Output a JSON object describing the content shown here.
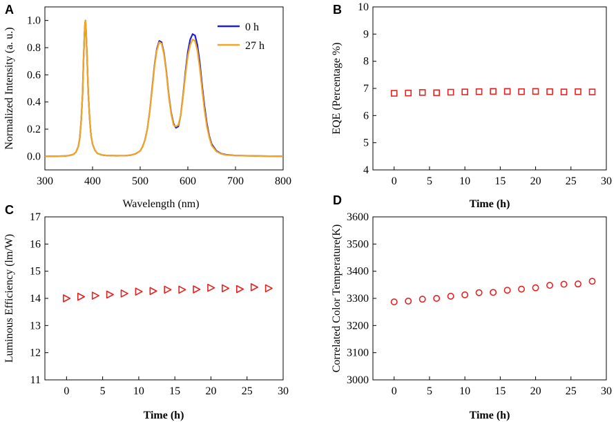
{
  "chart_data": [
    {
      "panel": "A",
      "type": "line",
      "title": "",
      "xlabel": "Wavelength (nm)",
      "ylabel": "Normalized Intensity (a. u.)",
      "xlim": [
        300,
        800
      ],
      "ylim": [
        -0.1,
        1.1
      ],
      "xticks": [
        300,
        400,
        500,
        600,
        700,
        800
      ],
      "yticks": [
        0.0,
        0.2,
        0.4,
        0.6,
        0.8,
        1.0
      ],
      "ytick_labels": [
        "0.0",
        "0.2",
        "0.4",
        "0.6",
        "0.8",
        "1.0"
      ],
      "legend_position": "top-right",
      "series": [
        {
          "name": "0 h",
          "color": "#1f1fd6",
          "x": [
            300,
            320,
            340,
            350,
            360,
            365,
            370,
            373,
            376,
            379,
            381,
            383,
            384,
            385,
            386,
            387,
            389,
            391,
            394,
            397,
            400,
            405,
            410,
            420,
            430,
            450,
            470,
            480,
            490,
            500,
            505,
            510,
            515,
            520,
            525,
            530,
            535,
            540,
            545,
            550,
            555,
            560,
            565,
            570,
            575,
            580,
            585,
            590,
            595,
            600,
            605,
            610,
            615,
            620,
            625,
            630,
            635,
            640,
            645,
            650,
            660,
            670,
            680,
            700,
            750,
            800
          ],
          "y": [
            0.0,
            0.0,
            0.002,
            0.005,
            0.015,
            0.03,
            0.07,
            0.13,
            0.25,
            0.45,
            0.7,
            0.9,
            0.97,
            1.0,
            0.96,
            0.88,
            0.68,
            0.47,
            0.27,
            0.15,
            0.09,
            0.045,
            0.022,
            0.01,
            0.006,
            0.004,
            0.005,
            0.009,
            0.018,
            0.04,
            0.07,
            0.12,
            0.2,
            0.33,
            0.5,
            0.67,
            0.79,
            0.85,
            0.84,
            0.76,
            0.62,
            0.45,
            0.32,
            0.24,
            0.21,
            0.22,
            0.3,
            0.45,
            0.62,
            0.77,
            0.86,
            0.9,
            0.89,
            0.82,
            0.69,
            0.52,
            0.37,
            0.24,
            0.15,
            0.09,
            0.04,
            0.02,
            0.012,
            0.006,
            0.002,
            0.0
          ]
        },
        {
          "name": "27 h",
          "color": "#f5a61e",
          "x": [
            300,
            320,
            340,
            350,
            360,
            365,
            370,
            373,
            376,
            379,
            381,
            383,
            384,
            385,
            386,
            387,
            389,
            391,
            394,
            397,
            400,
            405,
            410,
            420,
            430,
            450,
            470,
            480,
            490,
            500,
            505,
            510,
            515,
            520,
            525,
            530,
            535,
            540,
            545,
            550,
            555,
            560,
            565,
            570,
            575,
            580,
            585,
            590,
            595,
            600,
            605,
            610,
            615,
            620,
            625,
            630,
            635,
            640,
            645,
            650,
            660,
            670,
            680,
            700,
            750,
            800
          ],
          "y": [
            0.0,
            0.0,
            0.002,
            0.005,
            0.015,
            0.03,
            0.07,
            0.13,
            0.25,
            0.45,
            0.7,
            0.9,
            0.97,
            1.0,
            0.96,
            0.88,
            0.68,
            0.47,
            0.27,
            0.15,
            0.09,
            0.045,
            0.022,
            0.01,
            0.006,
            0.004,
            0.005,
            0.009,
            0.018,
            0.04,
            0.07,
            0.12,
            0.2,
            0.33,
            0.49,
            0.66,
            0.78,
            0.84,
            0.83,
            0.75,
            0.61,
            0.44,
            0.31,
            0.23,
            0.22,
            0.23,
            0.3,
            0.44,
            0.6,
            0.74,
            0.82,
            0.86,
            0.85,
            0.78,
            0.65,
            0.49,
            0.34,
            0.22,
            0.14,
            0.08,
            0.035,
            0.018,
            0.01,
            0.005,
            0.002,
            0.0
          ]
        }
      ]
    },
    {
      "panel": "B",
      "type": "scatter",
      "title": "",
      "xlabel": "Time (h)",
      "ylabel": "EQE (Percentage  %)",
      "xlim": [
        -3,
        30
      ],
      "ylim": [
        4,
        10
      ],
      "xticks": [
        0,
        5,
        10,
        15,
        20,
        25,
        30
      ],
      "yticks": [
        4,
        5,
        6,
        7,
        8,
        9,
        10
      ],
      "marker": "square",
      "color": "#e8201f",
      "x": [
        0,
        2,
        4,
        6,
        8,
        10,
        12,
        14,
        16,
        18,
        20,
        22,
        24,
        26,
        28
      ],
      "y": [
        6.82,
        6.83,
        6.85,
        6.84,
        6.86,
        6.87,
        6.88,
        6.89,
        6.89,
        6.88,
        6.89,
        6.88,
        6.87,
        6.88,
        6.87
      ]
    },
    {
      "panel": "C",
      "type": "scatter",
      "title": "",
      "xlabel": "Time (h)",
      "ylabel": "Luminous Efficiency (lm/W)",
      "xlim": [
        -3,
        30
      ],
      "ylim": [
        11,
        17
      ],
      "xticks": [
        0,
        5,
        10,
        15,
        20,
        25,
        30
      ],
      "yticks": [
        11,
        12,
        13,
        14,
        15,
        16,
        17
      ],
      "marker": "triangle-right",
      "color": "#e8201f",
      "x": [
        0,
        2,
        4,
        6,
        8,
        10,
        12,
        14,
        16,
        18,
        20,
        22,
        24,
        26,
        28
      ],
      "y": [
        14.0,
        14.06,
        14.1,
        14.14,
        14.18,
        14.25,
        14.27,
        14.32,
        14.32,
        14.33,
        14.39,
        14.37,
        14.34,
        14.41,
        14.37
      ]
    },
    {
      "panel": "D",
      "type": "scatter",
      "title": "",
      "xlabel": "Time (h)",
      "ylabel": "Correlated Color Temperature(K)",
      "xlim": [
        -3,
        30
      ],
      "ylim": [
        3000,
        3600
      ],
      "xticks": [
        0,
        5,
        10,
        15,
        20,
        25,
        30
      ],
      "yticks": [
        3000,
        3100,
        3200,
        3300,
        3400,
        3500,
        3600
      ],
      "marker": "circle",
      "color": "#e8201f",
      "x": [
        0,
        2,
        4,
        6,
        8,
        10,
        12,
        14,
        16,
        18,
        20,
        22,
        24,
        26,
        28
      ],
      "y": [
        3287,
        3290,
        3297,
        3300,
        3308,
        3313,
        3321,
        3322,
        3330,
        3334,
        3339,
        3348,
        3352,
        3353,
        3363
      ]
    }
  ]
}
